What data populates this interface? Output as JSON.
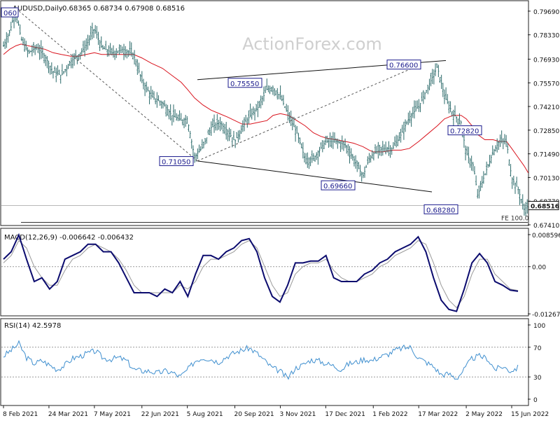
{
  "header": {
    "symbol": "AUDUSD,Daily",
    "ohlc": "0.68365 0.68734 0.67908 0.68516"
  },
  "watermark": "ActionForex.com",
  "colors": {
    "candle": "#2b6a6a",
    "ema": "#d9141e",
    "macd": "#0b0b6e",
    "signal": "#9a9a9a",
    "rsi": "#3f8fcf",
    "trendline": "#111111",
    "fib": "#555555",
    "labelBorder": "#1a1a8c",
    "labelText": "#1a1a8c"
  },
  "chart_data": [
    {
      "type": "line",
      "title": "AUDUSD,Daily",
      "description_values": "0.68365 0.68734 0.67908 0.68516",
      "x_tick_labels": [
        "8 Feb 2021",
        "24 Mar 2021",
        "7 May 2021",
        "22 Jun 2021",
        "5 Aug 2021",
        "20 Sep 2021",
        "3 Nov 2021",
        "17 Dec 2021",
        "1 Feb 2022",
        "17 Mar 2022",
        "2 May 2022",
        "15 Jun 2022"
      ],
      "y_tick_labels": [
        "0.79690",
        "0.78330",
        "0.76930",
        "0.75570",
        "0.74210",
        "0.72850",
        "0.71490",
        "0.70130",
        "0.68770",
        "0.67410"
      ],
      "ylim": [
        0.6741,
        0.8025
      ],
      "last_price_label": "0.68516",
      "price_path_x": [
        "8 Feb 2021",
        "14 Feb 2021",
        "20 Feb 2021",
        "25 Feb 2021",
        "4 Mar 2021",
        "12 Mar 2021",
        "20 Mar 2021",
        "28 Mar 2021",
        "5 Apr 2021",
        "14 Apr 2021",
        "22 Apr 2021",
        "29 Apr 2021",
        "7 May 2021",
        "14 May 2021",
        "24 May 2021",
        "4 Jun 2021",
        "14 Jun 2021",
        "22 Jun 2021",
        "1 Jul 2021",
        "12 Jul 2021",
        "21 Jul 2021",
        "30 Jul 2021",
        "5 Aug 2021",
        "12 Aug 2021",
        "20 Aug 2021",
        "28 Aug 2021",
        "5 Sep 2021",
        "13 Sep 2021",
        "20 Sep 2021",
        "27 Sep 2021",
        "5 Oct 2021",
        "13 Oct 2021",
        "21 Oct 2021",
        "27 Oct 2021",
        "3 Nov 2021",
        "11 Nov 2021",
        "19 Nov 2021",
        "27 Nov 2021",
        "5 Dec 2021",
        "12 Dec 2021",
        "17 Dec 2021",
        "27 Dec 2021",
        "5 Jan 2022",
        "13 Jan 2022",
        "22 Jan 2022",
        "28 Jan 2022",
        "1 Feb 2022",
        "10 Feb 2022",
        "20 Feb 2022",
        "28 Feb 2022",
        "8 Mar 2022",
        "17 Mar 2022",
        "25 Mar 2022",
        "4 Apr 2022",
        "11 Apr 2022",
        "19 Apr 2022",
        "27 Apr 2022",
        "2 May 2022",
        "9 May 2022",
        "13 May 2022",
        "20 May 2022",
        "28 May 2022",
        "3 Jun 2022",
        "10 Jun 2022",
        "15 Jun 2022",
        "21 Jun 2022",
        "27 Jun 2022",
        "1 Jul 2022"
      ],
      "price_path_y": [
        0.777,
        0.785,
        0.798,
        0.781,
        0.773,
        0.776,
        0.771,
        0.762,
        0.76,
        0.768,
        0.772,
        0.777,
        0.787,
        0.776,
        0.773,
        0.775,
        0.772,
        0.757,
        0.748,
        0.744,
        0.737,
        0.734,
        0.735,
        0.713,
        0.719,
        0.73,
        0.733,
        0.728,
        0.722,
        0.73,
        0.737,
        0.742,
        0.752,
        0.753,
        0.748,
        0.737,
        0.727,
        0.712,
        0.712,
        0.718,
        0.722,
        0.722,
        0.72,
        0.712,
        0.702,
        0.712,
        0.715,
        0.718,
        0.718,
        0.726,
        0.736,
        0.742,
        0.752,
        0.765,
        0.748,
        0.738,
        0.733,
        0.715,
        0.708,
        0.691,
        0.703,
        0.716,
        0.722,
        0.722,
        0.701,
        0.695,
        0.683,
        0.685
      ],
      "ema_y": [
        0.772,
        0.775,
        0.777,
        0.778,
        0.777,
        0.776,
        0.775,
        0.773,
        0.772,
        0.771,
        0.771,
        0.772,
        0.773,
        0.772,
        0.772,
        0.772,
        0.772,
        0.77,
        0.767,
        0.764,
        0.76,
        0.756,
        0.752,
        0.747,
        0.743,
        0.74,
        0.738,
        0.736,
        0.734,
        0.732,
        0.732,
        0.733,
        0.734,
        0.737,
        0.738,
        0.737,
        0.734,
        0.731,
        0.727,
        0.725,
        0.724,
        0.723,
        0.722,
        0.721,
        0.719,
        0.717,
        0.716,
        0.716,
        0.717,
        0.717,
        0.718,
        0.722,
        0.726,
        0.731,
        0.735,
        0.737,
        0.737,
        0.735,
        0.73,
        0.726,
        0.723,
        0.723,
        0.722,
        0.722,
        0.718,
        0.713,
        0.708,
        0.704
      ],
      "annotations": [
        {
          "text": "0.71050",
          "price": 0.7105
        },
        {
          "text": "0.75550",
          "price": 0.7555
        },
        {
          "text": "0.76600",
          "price": 0.766
        },
        {
          "text": "0.69660",
          "price": 0.6966
        },
        {
          "text": "0.72820",
          "price": 0.7282
        },
        {
          "text": "0.68280",
          "price": 0.6828
        },
        {
          "text": "060",
          "price": 0.796
        }
      ],
      "fib_label": "FE 100.0"
    },
    {
      "type": "line",
      "title": "MACD(12,26,9) -0.006642 -0.006432",
      "y_tick_labels": [
        "0.008596",
        "0.00",
        "-0.01267"
      ],
      "ylim": [
        -0.01267,
        0.008596
      ],
      "series": [
        {
          "name": "MACD",
          "values": [
            0.002,
            0.004,
            0.0085,
            0.002,
            -0.004,
            -0.003,
            -0.006,
            -0.004,
            0.002,
            0.003,
            0.004,
            0.006,
            0.006,
            0.004,
            0.004,
            0.001,
            -0.003,
            -0.007,
            -0.007,
            -0.007,
            -0.008,
            -0.006,
            -0.007,
            -0.004,
            -0.008,
            -0.002,
            0.003,
            0.003,
            0.002,
            0.004,
            0.005,
            0.007,
            0.0075,
            0.004,
            -0.003,
            -0.008,
            -0.0095,
            -0.005,
            0.001,
            0.001,
            0.0015,
            0.0015,
            0.003,
            -0.003,
            -0.004,
            -0.004,
            -0.004,
            -0.002,
            -0.001,
            0.001,
            0.002,
            0.004,
            0.005,
            0.006,
            0.008,
            0.004,
            -0.003,
            -0.009,
            -0.0115,
            -0.012,
            -0.006,
            0.001,
            0.0035,
            0.001,
            -0.004,
            -0.005,
            -0.0063,
            -0.0066
          ]
        },
        {
          "name": "Signal",
          "values": [
            0.001,
            0.003,
            0.007,
            0.005,
            0.0,
            -0.003,
            -0.005,
            -0.005,
            -0.001,
            0.002,
            0.003,
            0.005,
            0.006,
            0.005,
            0.004,
            0.002,
            -0.001,
            -0.005,
            -0.007,
            -0.007,
            -0.007,
            -0.007,
            -0.007,
            -0.005,
            -0.006,
            -0.004,
            0.0,
            0.002,
            0.002,
            0.003,
            0.004,
            0.006,
            0.007,
            0.005,
            0.0,
            -0.005,
            -0.008,
            -0.007,
            -0.002,
            0.0,
            0.001,
            0.001,
            0.002,
            -0.001,
            -0.003,
            -0.004,
            -0.004,
            -0.003,
            -0.002,
            0.0,
            0.001,
            0.003,
            0.004,
            0.005,
            0.007,
            0.006,
            0.001,
            -0.005,
            -0.009,
            -0.011,
            -0.008,
            -0.002,
            0.002,
            0.002,
            -0.002,
            -0.004,
            -0.006,
            -0.0064
          ]
        }
      ]
    },
    {
      "type": "line",
      "title": "RSI(14) 42.5978",
      "y_tick_labels": [
        "100",
        "70",
        "30",
        "0"
      ],
      "ylim": [
        0,
        100
      ],
      "series": [
        {
          "name": "RSI",
          "values": [
            58,
            66,
            75,
            56,
            48,
            52,
            46,
            40,
            46,
            55,
            58,
            62,
            65,
            55,
            54,
            56,
            52,
            40,
            38,
            38,
            35,
            38,
            36,
            30,
            40,
            52,
            56,
            54,
            50,
            57,
            62,
            66,
            69,
            62,
            52,
            42,
            38,
            28,
            42,
            46,
            53,
            52,
            48,
            45,
            40,
            48,
            50,
            54,
            52,
            57,
            60,
            66,
            69,
            70,
            56,
            50,
            44,
            33,
            34,
            28,
            40,
            55,
            58,
            55,
            40,
            44,
            38,
            42.6
          ]
        }
      ]
    }
  ]
}
